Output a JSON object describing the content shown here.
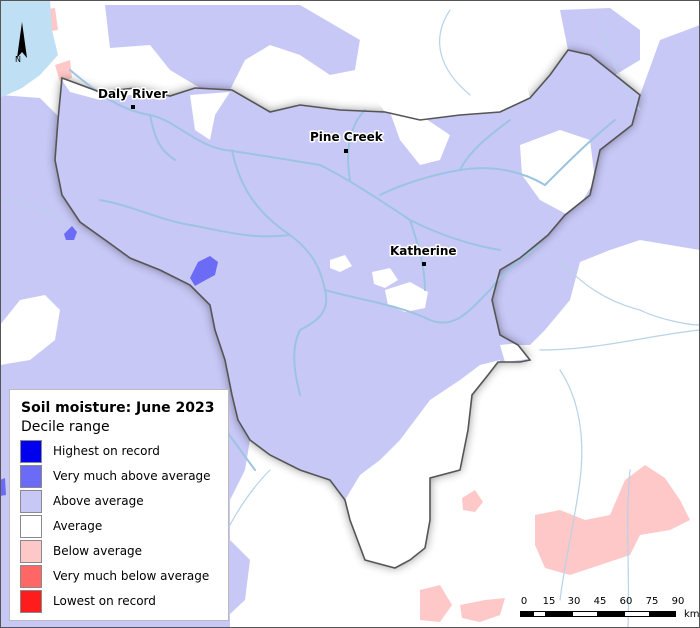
{
  "map": {
    "legend": {
      "title": "Soil moisture: June 2023",
      "subtitle": "Decile range",
      "items": [
        {
          "label": "Highest on record",
          "color": "#0000ee"
        },
        {
          "label": "Very much above average",
          "color": "#6b6bf5"
        },
        {
          "label": "Above average",
          "color": "#c8c8f7"
        },
        {
          "label": "Average",
          "color": "#ffffff"
        },
        {
          "label": "Below average",
          "color": "#ffc8c8"
        },
        {
          "label": "Very much below average",
          "color": "#ff6666"
        },
        {
          "label": "Lowest on record",
          "color": "#ff1c1c"
        }
      ]
    },
    "towns": [
      {
        "name": "Daly River"
      },
      {
        "name": "Pine Creek"
      },
      {
        "name": "Katherine"
      }
    ],
    "north_arrow": "N",
    "scale_bar": {
      "ticks": [
        "0",
        "15",
        "30",
        "45",
        "60",
        "75",
        "90"
      ],
      "unit": "km"
    },
    "colors": {
      "water": "#bfdff5",
      "river": "#9cc4e0",
      "catchment_outline": "#555555"
    }
  }
}
